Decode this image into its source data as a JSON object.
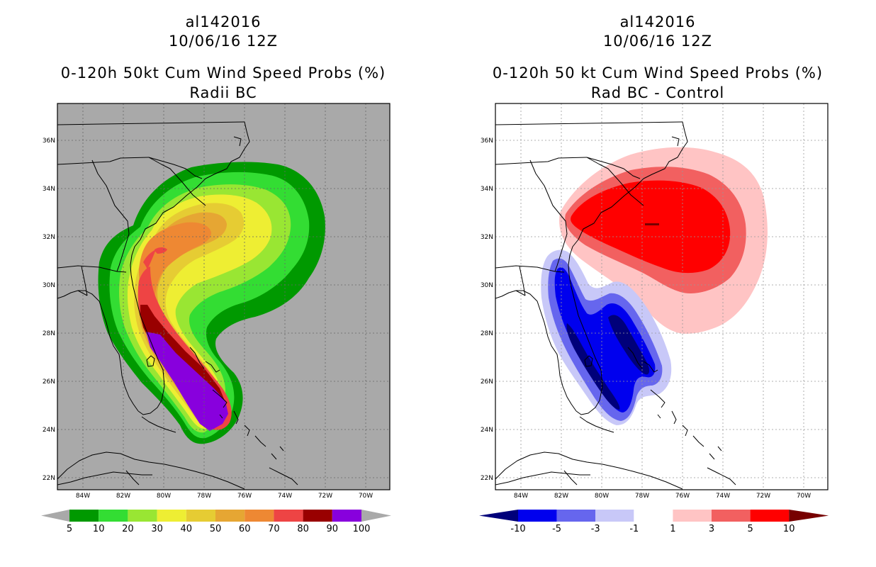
{
  "left_panel": {
    "storm_id": "al142016",
    "datetime": "10/06/16 12Z",
    "product": "0-120h 50kt Cum Wind Speed Probs (%)",
    "subtitle": "Radii BC",
    "background_color": "#a9a9a9",
    "colorbar": {
      "labels": [
        "5",
        "10",
        "20",
        "30",
        "40",
        "50",
        "60",
        "70",
        "80",
        "90",
        "100"
      ],
      "colors": [
        "#009900",
        "#33dd33",
        "#99e633",
        "#eeee33",
        "#e6cc33",
        "#e6a633",
        "#ee8833",
        "#ee4444",
        "#990000",
        "#8800dd"
      ]
    }
  },
  "right_panel": {
    "storm_id": "al142016",
    "datetime": "10/06/16 12Z",
    "product": "0-120h 50 kt Cum Wind Speed Probs (%)",
    "subtitle": "Rad BC - Control",
    "background_color": "#ffffff",
    "colorbar": {
      "labels": [
        "-10",
        "-5",
        "-3",
        "-1",
        "1",
        "3",
        "5",
        "10"
      ],
      "colors": [
        "#00007a",
        "#0000ee",
        "#6666ee",
        "#c8c8f8",
        "#ffffff",
        "#ffc4c4",
        "#f26060",
        "#ff0000",
        "#770000"
      ]
    }
  },
  "axes": {
    "lon_labels": [
      "84W",
      "82W",
      "80W",
      "78W",
      "76W",
      "74W",
      "72W",
      "70W"
    ],
    "lat_labels": [
      "36N",
      "34N",
      "32N",
      "30N",
      "28N",
      "26N",
      "24N",
      "22N"
    ]
  }
}
